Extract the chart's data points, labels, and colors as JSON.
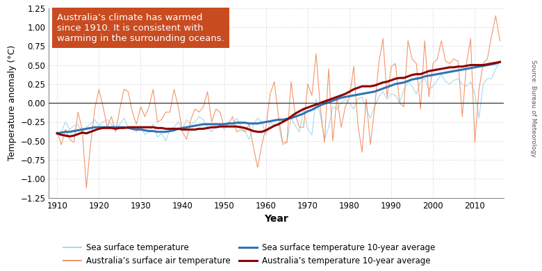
{
  "years": [
    1910,
    1911,
    1912,
    1913,
    1914,
    1915,
    1916,
    1917,
    1918,
    1919,
    1920,
    1921,
    1922,
    1923,
    1924,
    1925,
    1926,
    1927,
    1928,
    1929,
    1930,
    1931,
    1932,
    1933,
    1934,
    1935,
    1936,
    1937,
    1938,
    1939,
    1940,
    1941,
    1942,
    1943,
    1944,
    1945,
    1946,
    1947,
    1948,
    1949,
    1950,
    1951,
    1952,
    1953,
    1954,
    1955,
    1956,
    1957,
    1958,
    1959,
    1960,
    1961,
    1962,
    1963,
    1964,
    1965,
    1966,
    1967,
    1968,
    1969,
    1970,
    1971,
    1972,
    1973,
    1974,
    1975,
    1976,
    1977,
    1978,
    1979,
    1980,
    1981,
    1982,
    1983,
    1984,
    1985,
    1986,
    1987,
    1988,
    1989,
    1990,
    1991,
    1992,
    1993,
    1994,
    1995,
    1996,
    1997,
    1998,
    1999,
    2000,
    2001,
    2002,
    2003,
    2004,
    2005,
    2006,
    2007,
    2008,
    2009,
    2010,
    2011,
    2012,
    2013,
    2014,
    2015,
    2016
  ],
  "sea_surface": [
    -0.42,
    -0.38,
    -0.25,
    -0.35,
    -0.3,
    -0.28,
    -0.38,
    -0.32,
    -0.28,
    -0.22,
    -0.3,
    -0.25,
    -0.22,
    -0.28,
    -0.35,
    -0.28,
    -0.2,
    -0.32,
    -0.35,
    -0.38,
    -0.3,
    -0.42,
    -0.38,
    -0.28,
    -0.45,
    -0.4,
    -0.5,
    -0.35,
    -0.32,
    -0.25,
    -0.35,
    -0.22,
    -0.28,
    -0.25,
    -0.18,
    -0.22,
    -0.32,
    -0.38,
    -0.28,
    -0.3,
    -0.35,
    -0.25,
    -0.28,
    -0.2,
    -0.3,
    -0.38,
    -0.48,
    -0.28,
    -0.2,
    -0.25,
    -0.42,
    -0.25,
    -0.3,
    -0.28,
    -0.55,
    -0.52,
    -0.2,
    -0.3,
    -0.38,
    -0.08,
    -0.35,
    -0.42,
    0.05,
    -0.15,
    -0.48,
    -0.32,
    -0.05,
    -0.08,
    0.0,
    0.05,
    0.0,
    -0.08,
    0.05,
    0.08,
    -0.08,
    -0.2,
    -0.05,
    0.08,
    0.15,
    0.05,
    0.12,
    0.1,
    0.0,
    0.18,
    0.28,
    0.22,
    0.12,
    0.28,
    0.32,
    0.18,
    0.22,
    0.3,
    0.38,
    0.28,
    0.25,
    0.3,
    0.32,
    0.25,
    0.22,
    0.28,
    0.12,
    -0.2,
    0.25,
    0.32,
    0.32,
    0.45,
    0.55
  ],
  "sea_surface_avg": [
    -0.4,
    -0.39,
    -0.38,
    -0.38,
    -0.37,
    -0.36,
    -0.35,
    -0.34,
    -0.33,
    -0.32,
    -0.32,
    -0.32,
    -0.32,
    -0.32,
    -0.32,
    -0.32,
    -0.32,
    -0.33,
    -0.34,
    -0.35,
    -0.35,
    -0.36,
    -0.37,
    -0.37,
    -0.38,
    -0.38,
    -0.38,
    -0.37,
    -0.36,
    -0.34,
    -0.33,
    -0.32,
    -0.31,
    -0.3,
    -0.29,
    -0.28,
    -0.28,
    -0.28,
    -0.28,
    -0.28,
    -0.28,
    -0.27,
    -0.27,
    -0.26,
    -0.26,
    -0.26,
    -0.27,
    -0.27,
    -0.27,
    -0.26,
    -0.25,
    -0.24,
    -0.23,
    -0.22,
    -0.22,
    -0.21,
    -0.2,
    -0.18,
    -0.16,
    -0.14,
    -0.11,
    -0.09,
    -0.06,
    -0.03,
    -0.01,
    0.01,
    0.03,
    0.05,
    0.07,
    0.08,
    0.09,
    0.1,
    0.11,
    0.12,
    0.13,
    0.14,
    0.15,
    0.17,
    0.19,
    0.21,
    0.23,
    0.25,
    0.26,
    0.27,
    0.29,
    0.31,
    0.32,
    0.33,
    0.35,
    0.36,
    0.37,
    0.38,
    0.39,
    0.4,
    0.41,
    0.42,
    0.43,
    0.44,
    0.45,
    0.46,
    0.47,
    0.48,
    0.49,
    0.5,
    0.51,
    0.52,
    0.54
  ],
  "aus_air": [
    -0.38,
    -0.55,
    -0.35,
    -0.48,
    -0.52,
    -0.12,
    -0.35,
    -1.12,
    -0.55,
    -0.08,
    0.18,
    -0.05,
    -0.32,
    -0.18,
    -0.38,
    -0.08,
    0.18,
    0.15,
    -0.12,
    -0.28,
    -0.05,
    -0.18,
    -0.05,
    0.18,
    -0.25,
    -0.22,
    -0.12,
    -0.12,
    0.18,
    -0.05,
    -0.38,
    -0.48,
    -0.22,
    -0.08,
    -0.12,
    -0.05,
    0.15,
    -0.25,
    -0.08,
    -0.12,
    -0.32,
    -0.28,
    -0.18,
    -0.38,
    -0.35,
    -0.38,
    -0.28,
    -0.58,
    -0.85,
    -0.55,
    -0.32,
    0.12,
    0.28,
    -0.18,
    -0.52,
    -0.52,
    0.28,
    -0.15,
    -0.32,
    -0.32,
    0.25,
    0.1,
    0.65,
    -0.05,
    -0.52,
    0.45,
    -0.5,
    0.08,
    -0.32,
    -0.05,
    0.08,
    0.48,
    -0.28,
    -0.65,
    0.05,
    -0.55,
    -0.08,
    0.52,
    0.85,
    0.08,
    0.48,
    0.52,
    0.0,
    -0.05,
    0.82,
    0.58,
    0.52,
    -0.08,
    0.82,
    0.08,
    0.52,
    0.58,
    0.82,
    0.55,
    0.52,
    0.58,
    0.55,
    -0.18,
    0.52,
    0.85,
    -0.52,
    0.18,
    0.52,
    0.58,
    0.88,
    1.15,
    0.82
  ],
  "aus_air_avg": [
    -0.4,
    -0.42,
    -0.43,
    -0.44,
    -0.43,
    -0.41,
    -0.39,
    -0.4,
    -0.38,
    -0.36,
    -0.34,
    -0.33,
    -0.33,
    -0.33,
    -0.34,
    -0.33,
    -0.33,
    -0.32,
    -0.32,
    -0.32,
    -0.32,
    -0.32,
    -0.32,
    -0.32,
    -0.33,
    -0.33,
    -0.34,
    -0.34,
    -0.34,
    -0.34,
    -0.35,
    -0.35,
    -0.35,
    -0.35,
    -0.34,
    -0.34,
    -0.33,
    -0.32,
    -0.32,
    -0.31,
    -0.31,
    -0.31,
    -0.31,
    -0.31,
    -0.32,
    -0.33,
    -0.35,
    -0.37,
    -0.38,
    -0.38,
    -0.36,
    -0.33,
    -0.3,
    -0.28,
    -0.25,
    -0.22,
    -0.18,
    -0.14,
    -0.11,
    -0.08,
    -0.06,
    -0.04,
    -0.02,
    0.0,
    0.02,
    0.04,
    0.06,
    0.08,
    0.1,
    0.12,
    0.15,
    0.18,
    0.2,
    0.22,
    0.22,
    0.22,
    0.23,
    0.25,
    0.27,
    0.28,
    0.3,
    0.32,
    0.33,
    0.33,
    0.35,
    0.37,
    0.38,
    0.38,
    0.4,
    0.42,
    0.43,
    0.44,
    0.45,
    0.46,
    0.47,
    0.47,
    0.48,
    0.48,
    0.49,
    0.5,
    0.5,
    0.5,
    0.5,
    0.51,
    0.52,
    0.53,
    0.54
  ],
  "sea_color": "#A8D8EA",
  "sea_avg_color": "#2E74B5",
  "aus_color": "#F4956A",
  "aus_avg_color": "#8B0000",
  "annotation_text": "Australia’s climate has warmed\nsince 1910. It is consistent with\nwarming in the surrounding oceans.",
  "annotation_bg": "#C94B20",
  "annotation_text_color": "#FFFFFF",
  "xlabel": "Year",
  "ylabel": "Temperature anomaly (°C)",
  "ylim": [
    -1.25,
    1.25
  ],
  "xlim": [
    1908,
    2017
  ],
  "yticks": [
    -1.25,
    -1.0,
    -0.75,
    -0.5,
    -0.25,
    0.0,
    0.25,
    0.5,
    0.75,
    1.0,
    1.25
  ],
  "xticks": [
    1910,
    1920,
    1930,
    1940,
    1950,
    1960,
    1970,
    1980,
    1990,
    2000,
    2010
  ],
  "source_text": "Source: Bureau of Meteorology",
  "legend_labels": [
    "Sea surface temperature",
    "Sea surface temperature 10-year average",
    "Australia’s surface air temperature",
    "Australia’s temperature 10-year average"
  ],
  "bg_color": "#FFFFFF",
  "grid_color": "#CCCCCC"
}
